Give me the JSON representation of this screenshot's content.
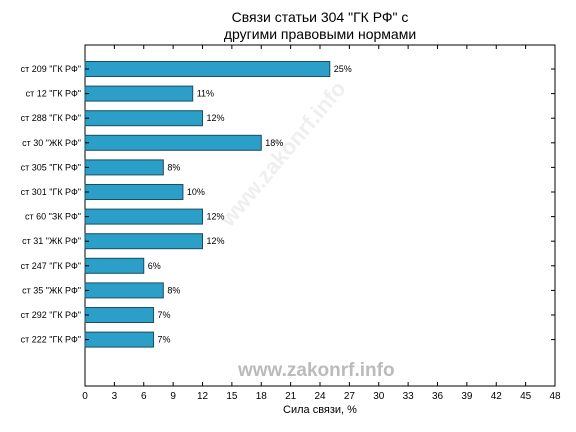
{
  "chart_data": {
    "type": "bar",
    "orientation": "horizontal",
    "title_line1": "Связи статьи 304 \"ГК РФ\" с",
    "title_line2": "другими правовыми нормами",
    "xlabel": "Сила связи, %",
    "ylabel": "",
    "xlim": [
      0,
      48
    ],
    "xticks": [
      0,
      3,
      6,
      9,
      12,
      15,
      18,
      21,
      24,
      27,
      30,
      33,
      36,
      39,
      42,
      45,
      48
    ],
    "categories": [
      "ст 209 \"ГК РФ\"",
      "ст 12 \"ГК РФ\"",
      "ст 288 \"ГК РФ\"",
      "ст 30 \"ЖК РФ\"",
      "ст 305 \"ГК РФ\"",
      "ст 301 \"ГК РФ\"",
      "ст 60 \"ЗК РФ\"",
      "ст 31 \"ЖК РФ\"",
      "ст 247 \"ГК РФ\"",
      "ст 35 \"ЖК РФ\"",
      "ст 292 \"ГК РФ\"",
      "ст 222 \"ГК РФ\""
    ],
    "values": [
      25,
      11,
      12,
      18,
      8,
      10,
      12,
      12,
      6,
      8,
      7,
      7
    ],
    "value_labels": [
      "25%",
      "11%",
      "12%",
      "18%",
      "8%",
      "10%",
      "12%",
      "12%",
      "6%",
      "8%",
      "7%",
      "7%"
    ],
    "bar_color": "#2b9fc7",
    "grid": false
  },
  "watermark": "www.zakonrf.info"
}
